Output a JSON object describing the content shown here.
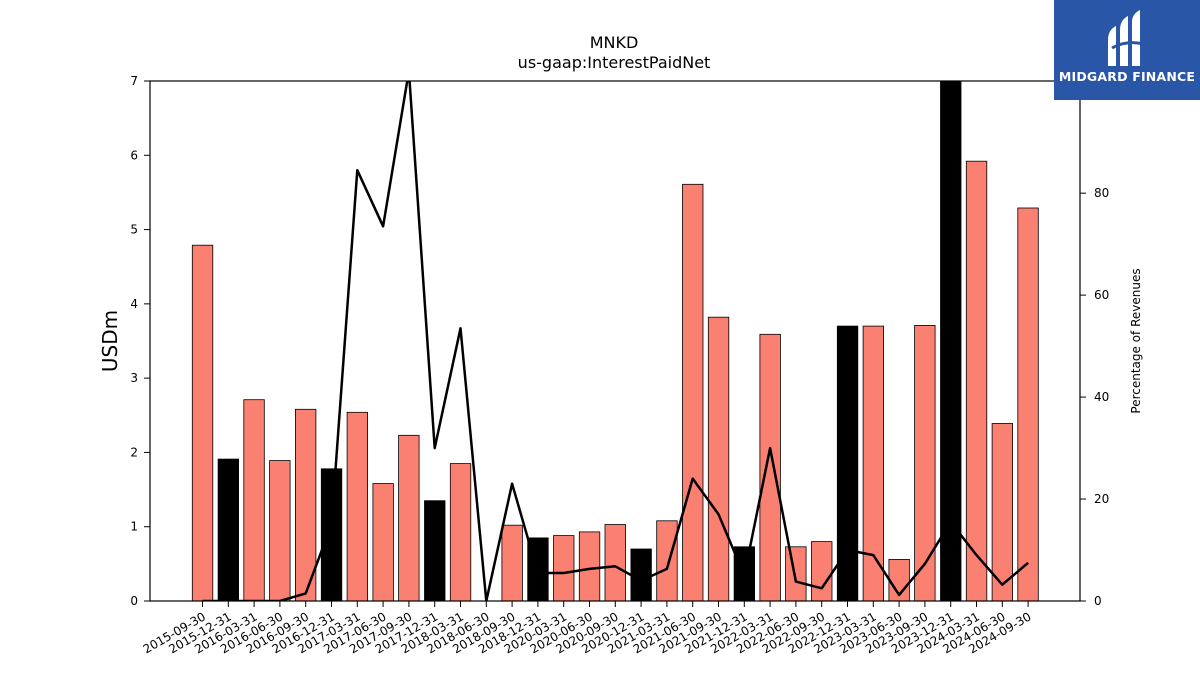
{
  "chart_data": {
    "type": "bar",
    "title": "MNKD",
    "subtitle": "us-gaap:InterestPaidNet",
    "ylabel": "USDm",
    "y2label": "Percentage of Revenues",
    "ylim": [
      0,
      7
    ],
    "y2lim": [
      0,
      102
    ],
    "yticks": [
      0,
      1,
      2,
      3,
      4,
      5,
      6,
      7
    ],
    "y2ticks": [
      0,
      20,
      40,
      60,
      80
    ],
    "categories": [
      "2015-09-30",
      "2015-12-31",
      "2016-03-31",
      "2016-06-30",
      "2016-09-30",
      "2016-12-31",
      "2017-03-31",
      "2017-06-30",
      "2017-09-30",
      "2017-12-31",
      "2018-03-31",
      "2018-06-30",
      "2018-09-30",
      "2018-12-31",
      "2020-03-31",
      "2020-06-30",
      "2020-09-30",
      "2020-12-31",
      "2021-03-31",
      "2021-06-30",
      "2021-09-30",
      "2021-12-31",
      "2022-03-31",
      "2022-06-30",
      "2022-09-30",
      "2022-12-31",
      "2023-03-31",
      "2023-06-30",
      "2023-09-30",
      "2023-12-31",
      "2024-03-31",
      "2024-06-30",
      "2024-09-30"
    ],
    "series": [
      {
        "kind": "bar",
        "values": [
          4.79,
          1.91,
          2.71,
          1.89,
          2.58,
          1.78,
          2.54,
          1.58,
          2.23,
          1.35,
          1.85,
          0,
          1.02,
          0.85,
          0.88,
          0.93,
          1.03,
          0.7,
          1.08,
          5.61,
          3.82,
          0.73,
          3.59,
          0.73,
          0.8,
          3.7,
          3.7,
          0.56,
          3.71,
          7.0,
          5.92,
          2.39,
          5.29
        ],
        "highlight": [
          false,
          true,
          false,
          false,
          false,
          true,
          false,
          false,
          false,
          true,
          false,
          false,
          false,
          true,
          false,
          false,
          false,
          true,
          false,
          false,
          false,
          true,
          false,
          false,
          false,
          true,
          false,
          false,
          false,
          true,
          false,
          false,
          false
        ]
      },
      {
        "kind": "line",
        "axis": "right",
        "values": [
          0,
          0,
          0,
          0,
          1.5,
          15,
          84.5,
          73.5,
          104,
          30,
          53.5,
          0,
          23,
          5.5,
          5.5,
          6.3,
          6.8,
          4,
          6.3,
          24,
          17,
          5,
          30,
          3.8,
          2.5,
          10,
          9,
          1.2,
          7.3,
          15.5,
          9,
          3.2,
          7.5
        ]
      }
    ],
    "colors": {
      "bar": "#fa8072",
      "bar_highlight": "#000000",
      "line": "#000000"
    }
  },
  "logo": {
    "text": "MIDGARD FINANCE"
  }
}
